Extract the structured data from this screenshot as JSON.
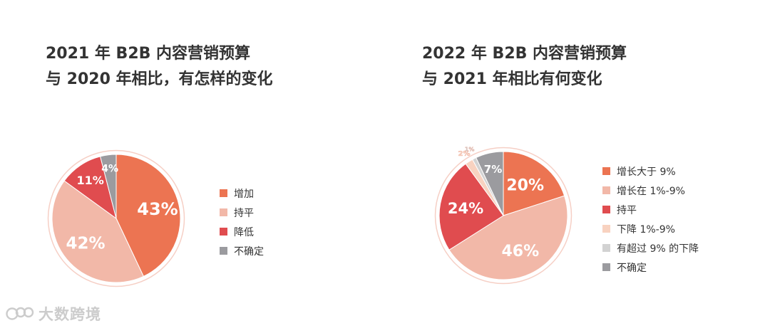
{
  "chart_data": [
    {
      "type": "pie",
      "title_lines": [
        "2021 年 B2B 内容营销预算",
        "与 2020 年相比，有怎样的变化"
      ],
      "categories": [
        "增加",
        "持平",
        "降低",
        "不确定"
      ],
      "values": [
        43,
        42,
        11,
        4
      ],
      "labels": [
        "43%",
        "42%",
        "11%",
        "4%"
      ],
      "colors": [
        "#ec7452",
        "#f2b8a8",
        "#e04c4f",
        "#9b9b9f"
      ],
      "legend_position": "right"
    },
    {
      "type": "pie",
      "title_lines": [
        "2022 年 B2B 内容营销预算",
        "与 2021 年相比有何变化"
      ],
      "categories": [
        "增长大于 9%",
        "增长在 1%-9%",
        "持平",
        "下降 1%-9%",
        "有超过 9% 的下降",
        "不确定"
      ],
      "values": [
        20,
        46,
        24,
        2,
        1,
        7
      ],
      "labels": [
        "20%",
        "46%",
        "24%",
        "2%",
        "1%",
        "7%"
      ],
      "colors": [
        "#ec7452",
        "#f2b8a8",
        "#e04c4f",
        "#f8d2c0",
        "#d2d2d2",
        "#9b9b9f"
      ],
      "legend_position": "right"
    }
  ],
  "watermark": {
    "text": "大数跨境",
    "icon": "brand-logo-icon"
  }
}
